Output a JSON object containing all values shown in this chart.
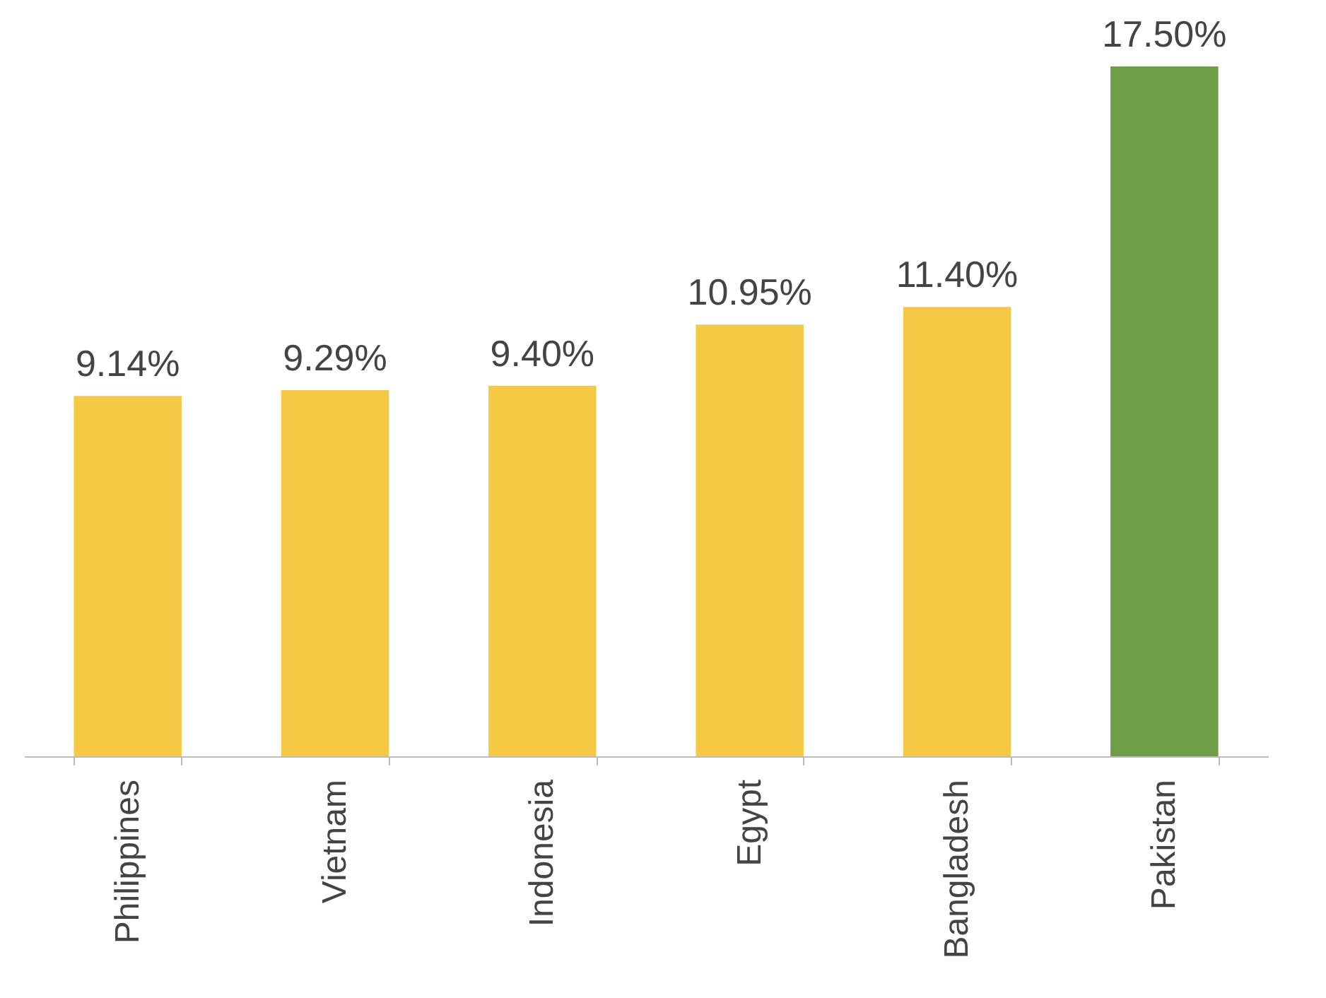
{
  "chart_data": {
    "type": "bar",
    "categories": [
      "Philippines",
      "Vietnam",
      "Indonesia",
      "Egypt",
      "Bangladesh",
      "Pakistan"
    ],
    "values": [
      9.14,
      9.29,
      9.4,
      10.95,
      11.4,
      17.5
    ],
    "value_labels": [
      "9.14%",
      "9.29%",
      "9.40%",
      "10.95%",
      "11.40%",
      "17.50%"
    ],
    "colors": [
      "#f5c944",
      "#f5c944",
      "#f5c944",
      "#f5c944",
      "#f5c944",
      "#6e9e45"
    ]
  }
}
